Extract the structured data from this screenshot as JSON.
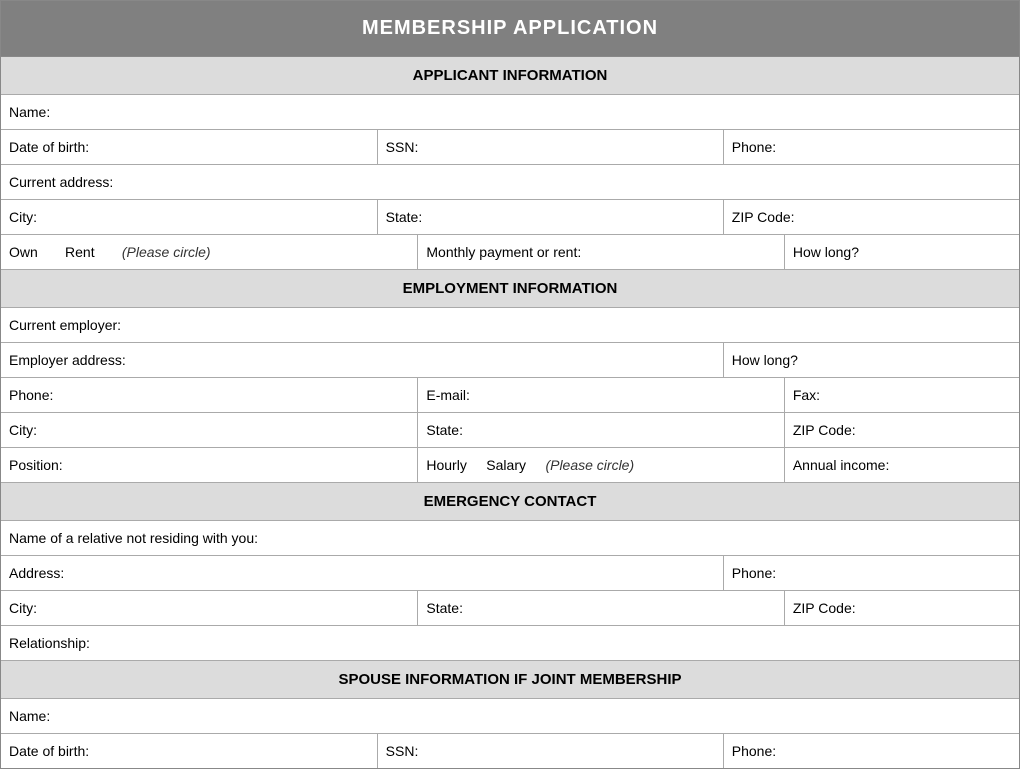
{
  "title": "MEMBERSHIP APPLICATION",
  "sections": {
    "applicant": {
      "header": "APPLICANT INFORMATION",
      "name": "Name:",
      "dob": "Date of birth:",
      "ssn": "SSN:",
      "phone": "Phone:",
      "current_address": "Current address:",
      "city": "City:",
      "state": "State:",
      "zip": "ZIP Code:",
      "own": "Own",
      "rent": "Rent",
      "circle_hint": "(Please circle)",
      "monthly_payment": "Monthly payment or rent:",
      "how_long": "How long?"
    },
    "employment": {
      "header": "EMPLOYMENT INFORMATION",
      "current_employer": "Current employer:",
      "employer_address": "Employer address:",
      "how_long": "How long?",
      "phone": "Phone:",
      "email": "E-mail:",
      "fax": "Fax:",
      "city": "City:",
      "state": "State:",
      "zip": "ZIP Code:",
      "position": "Position:",
      "hourly": "Hourly",
      "salary": "Salary",
      "circle_hint": "(Please circle)",
      "annual_income": "Annual income:"
    },
    "emergency": {
      "header": "EMERGENCY CONTACT",
      "relative_name": "Name of a relative not residing with you:",
      "address": "Address:",
      "phone": "Phone:",
      "city": "City:",
      "state": "State:",
      "zip": "ZIP Code:",
      "relationship": "Relationship:"
    },
    "spouse": {
      "header": "SPOUSE INFORMATION IF JOINT MEMBERSHIP",
      "name": "Name:",
      "dob": "Date of birth:",
      "ssn": "SSN:",
      "phone": "Phone:"
    }
  },
  "colors": {
    "title_bg": "#808080",
    "title_text": "#ffffff",
    "section_bg": "#dcdcdc",
    "border": "#aaaaaa",
    "cell_bg": "#ffffff",
    "text": "#000000"
  }
}
